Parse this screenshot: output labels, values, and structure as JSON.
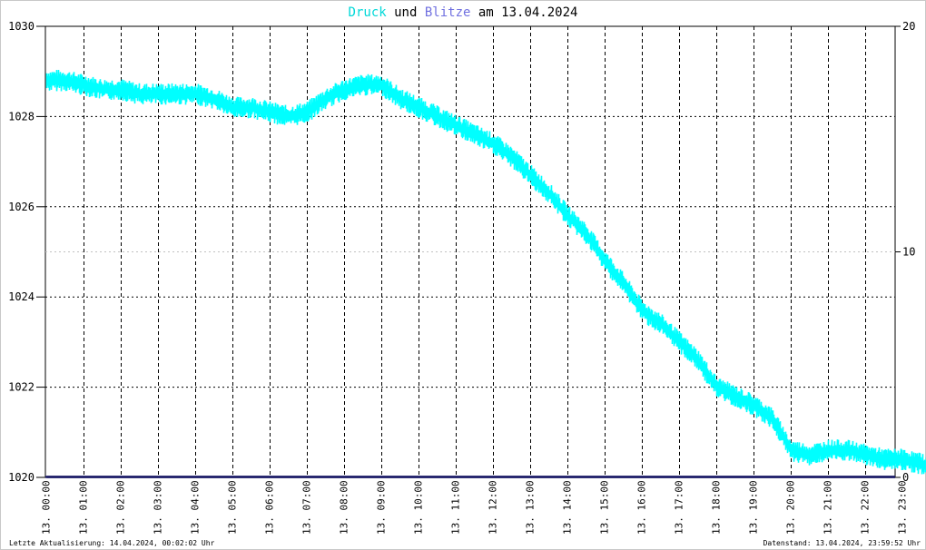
{
  "title": {
    "part1": "Druck",
    "part2": " und ",
    "part3": "Blitze",
    "part4": " am 13.04.2024",
    "color1": "#00d8d8",
    "color2": "#000000",
    "color3": "#7070e0",
    "color4": "#000000"
  },
  "footer": {
    "left": "Letzte Aktualisierung: 14.04.2024, 00:02:02 Uhr",
    "right": "Datenstand: 13.04.2024, 23:59:52 Uhr"
  },
  "colors": {
    "pressure": "#00ffff",
    "lightning": "#1a1a66",
    "grid": "#000000"
  },
  "chart_data": {
    "type": "line",
    "grid": true,
    "y_left": {
      "min": 1020,
      "max": 1030,
      "ticks": [
        "1030",
        "1028",
        "1026",
        "1024",
        "1022",
        "1020"
      ]
    },
    "y_right": {
      "min": 0,
      "max": 20,
      "ticks": [
        "20",
        "10",
        "0"
      ]
    },
    "x_ticks": [
      "13. 00:00",
      "13. 01:00",
      "13. 02:00",
      "13. 03:00",
      "13. 04:00",
      "13. 05:00",
      "13. 06:00",
      "13. 07:00",
      "13. 08:00",
      "13. 09:00",
      "13. 10:00",
      "13. 11:00",
      "13. 12:00",
      "13. 13:00",
      "13. 14:00",
      "13. 15:00",
      "13. 16:00",
      "13. 17:00",
      "13. 18:00",
      "13. 19:00",
      "13. 20:00",
      "13. 21:00",
      "13. 22:00",
      "13. 23:00"
    ],
    "series": [
      {
        "name": "Druck",
        "axis": "left",
        "x_hours": [
          0,
          0.5,
          1,
          1.5,
          2,
          2.5,
          3,
          3.5,
          4,
          4.5,
          5,
          5.5,
          6,
          6.5,
          7,
          7.5,
          8,
          8.5,
          9,
          9.5,
          10,
          10.5,
          11,
          11.5,
          12,
          12.5,
          13,
          13.5,
          14,
          14.5,
          15,
          15.5,
          16,
          16.5,
          17,
          17.5,
          18,
          18.5,
          19,
          19.5,
          20,
          20.5,
          21,
          21.5,
          22,
          22.5,
          23,
          23.5,
          23.9
        ],
        "values": [
          1028.8,
          1028.8,
          1028.7,
          1028.6,
          1028.6,
          1028.5,
          1028.5,
          1028.5,
          1028.5,
          1028.4,
          1028.2,
          1028.2,
          1028.1,
          1028.0,
          1028.1,
          1028.4,
          1028.6,
          1028.7,
          1028.7,
          1028.4,
          1028.2,
          1028.0,
          1027.8,
          1027.6,
          1027.4,
          1027.1,
          1026.7,
          1026.3,
          1025.8,
          1025.4,
          1024.8,
          1024.3,
          1023.7,
          1023.4,
          1023.0,
          1022.6,
          1022.0,
          1021.8,
          1021.6,
          1021.3,
          1020.6,
          1020.5,
          1020.6,
          1020.6,
          1020.5,
          1020.4,
          1020.4,
          1020.3,
          1020.2
        ]
      },
      {
        "name": "Blitze",
        "axis": "right",
        "x_hours": [
          0,
          23.99
        ],
        "values": [
          0,
          0
        ]
      }
    ]
  }
}
